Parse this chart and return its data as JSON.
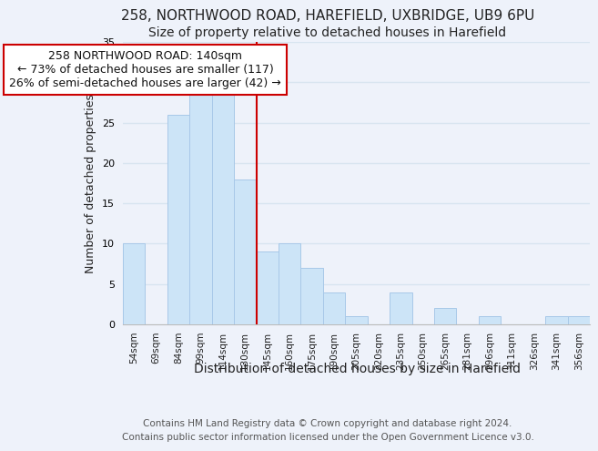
{
  "title1": "258, NORTHWOOD ROAD, HAREFIELD, UXBRIDGE, UB9 6PU",
  "title2": "Size of property relative to detached houses in Harefield",
  "xlabel": "Distribution of detached houses by size in Harefield",
  "ylabel": "Number of detached properties",
  "footer1": "Contains HM Land Registry data © Crown copyright and database right 2024.",
  "footer2": "Contains public sector information licensed under the Open Government Licence v3.0.",
  "categories": [
    "54sqm",
    "69sqm",
    "84sqm",
    "99sqm",
    "114sqm",
    "130sqm",
    "145sqm",
    "160sqm",
    "175sqm",
    "190sqm",
    "205sqm",
    "220sqm",
    "235sqm",
    "250sqm",
    "265sqm",
    "281sqm",
    "296sqm",
    "311sqm",
    "326sqm",
    "341sqm",
    "356sqm"
  ],
  "values": [
    10,
    0,
    26,
    29,
    29,
    18,
    9,
    10,
    7,
    4,
    1,
    0,
    4,
    0,
    2,
    0,
    1,
    0,
    0,
    1,
    1
  ],
  "bar_color": "#cce4f7",
  "bar_edge_color": "#a8c8e8",
  "highlight_line_color": "#cc0000",
  "annotation_text": "258 NORTHWOOD ROAD: 140sqm\n← 73% of detached houses are smaller (117)\n26% of semi-detached houses are larger (42) →",
  "annotation_box_color": "#ffffff",
  "annotation_box_edge_color": "#cc0000",
  "ylim": [
    0,
    35
  ],
  "yticks": [
    0,
    5,
    10,
    15,
    20,
    25,
    30,
    35
  ],
  "background_color": "#eef2fa",
  "grid_color": "#d8e4f0",
  "title1_fontsize": 11,
  "title2_fontsize": 10,
  "xlabel_fontsize": 10,
  "ylabel_fontsize": 9,
  "annotation_fontsize": 9,
  "footer_fontsize": 7.5
}
